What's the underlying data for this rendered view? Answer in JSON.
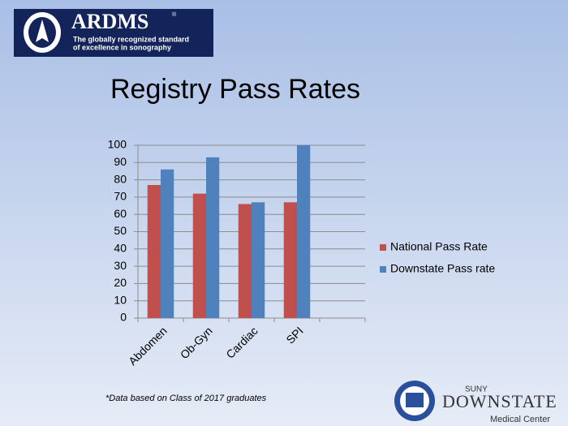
{
  "logo": {
    "name": "ARDMS",
    "mark": "®",
    "tagline": [
      "The globally recognized standard",
      "of excellence in sonography"
    ]
  },
  "chart_data": {
    "type": "bar",
    "title": "Registry Pass Rates",
    "categories": [
      "Abdomen",
      "Ob-Gyn",
      "Cardiac",
      "SPI",
      null
    ],
    "series": [
      {
        "name": "National Pass Rate",
        "color": "#c0504d",
        "values": [
          77,
          72,
          66,
          67,
          null
        ]
      },
      {
        "name": "Downstate Pass rate",
        "color": "#4f81bd",
        "values": [
          86,
          93,
          67,
          100,
          null
        ]
      }
    ],
    "ylim": [
      0,
      100
    ],
    "yticks": [
      0,
      10,
      20,
      30,
      40,
      50,
      60,
      70,
      80,
      90,
      100
    ],
    "grid": true,
    "legend": "right"
  },
  "footnote": "*Data based on Class of 2017 graduates",
  "footer_logo": {
    "small": "SUNY",
    "name": "DOWNSTATE",
    "sub": "Medical Center"
  }
}
